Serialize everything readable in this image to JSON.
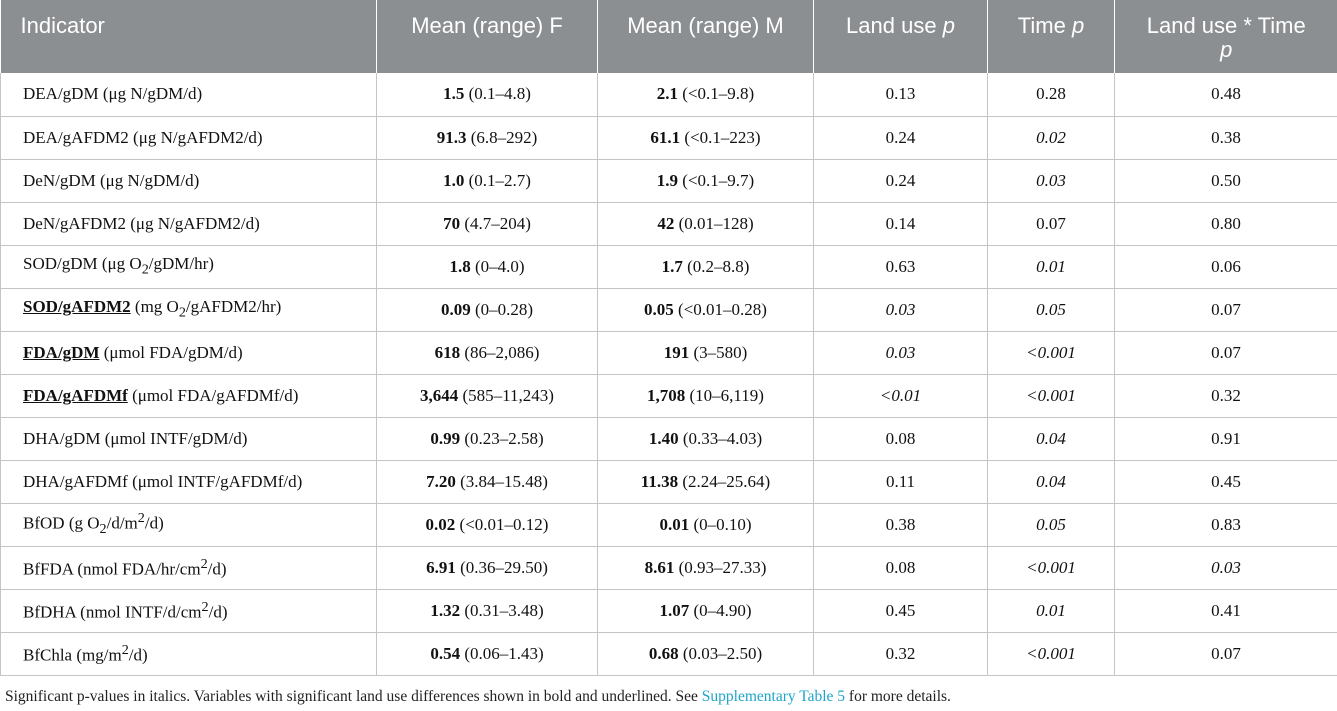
{
  "headers": {
    "indicator": "Indicator",
    "mean_f": "Mean (range) F",
    "mean_m": "Mean (range) M",
    "land_use_text": "Land use ",
    "time_text": "Time ",
    "interaction_text": "Land use * Time",
    "p": "p"
  },
  "rows": [
    {
      "name": "DEA/gDM",
      "name_bold": false,
      "unit_a": " (μg N/gDM/d)",
      "sup": "",
      "unit_b": "",
      "f_mean": "1.5",
      "f_range": " (0.1–4.8)",
      "m_mean": "2.1",
      "m_range": " (<0.1–9.8)",
      "lu": "0.13",
      "t": "0.28",
      "lt": "0.48"
    },
    {
      "name": "DEA/gAFDM2",
      "name_bold": false,
      "unit_a": " (μg N/gAFDM2/d)",
      "sup": "",
      "unit_b": "",
      "f_mean": "91.3",
      "f_range": " (6.8–292)",
      "m_mean": "61.1",
      "m_range": " (<0.1–223)",
      "lu": "0.24",
      "t": "0.02",
      "lt": "0.38"
    },
    {
      "name": "DeN/gDM",
      "name_bold": false,
      "unit_a": " (μg N/gDM/d)",
      "sup": "",
      "unit_b": "",
      "f_mean": "1.0",
      "f_range": " (0.1–2.7)",
      "m_mean": "1.9",
      "m_range": " (<0.1–9.7)",
      "lu": "0.24",
      "t": "0.03",
      "lt": "0.50"
    },
    {
      "name": "DeN/gAFDM2",
      "name_bold": false,
      "unit_a": " (μg N/gAFDM2/d)",
      "sup": "",
      "unit_b": "",
      "f_mean": "70",
      "f_range": " (4.7–204)",
      "m_mean": "42",
      "m_range": " (0.01–128)",
      "lu": "0.14",
      "t": "0.07",
      "lt": "0.80"
    },
    {
      "name": "SOD/gDM",
      "name_bold": false,
      "unit_a": " (μg O",
      "sub": "2",
      "unit_a2": "/gDM/hr)",
      "sup": "",
      "unit_b": "",
      "f_mean": "1.8",
      "f_range": " (0–4.0)",
      "m_mean": "1.7",
      "m_range": " (0.2–8.8)",
      "lu": "0.63",
      "t": "0.01",
      "lt": "0.06"
    },
    {
      "name": "SOD/gAFDM2",
      "name_bold": true,
      "unit_a": " (mg O",
      "sub": "2",
      "unit_a2": "/gAFDM2/hr)",
      "sup": "",
      "unit_b": "",
      "f_mean": "0.09",
      "f_range": " (0–0.28)",
      "m_mean": "0.05",
      "m_range": " (<0.01–0.28)",
      "lu": "0.03",
      "t": "0.05",
      "lt": "0.07"
    },
    {
      "name": "FDA/gDM",
      "name_bold": true,
      "unit_a": " (μmol FDA/gDM/d)",
      "sup": "",
      "unit_b": "",
      "f_mean": "618",
      "f_range": " (86–2,086)",
      "m_mean": "191",
      "m_range": " (3–580)",
      "lu": "0.03",
      "t": "<0.001",
      "lt": "0.07"
    },
    {
      "name": "FDA/gAFDMf",
      "name_bold": true,
      "unit_a": " (μmol FDA/gAFDMf/d)",
      "sup": "",
      "unit_b": "",
      "f_mean": "3,644",
      "f_range": " (585–11,243)",
      "m_mean": "1,708",
      "m_range": " (10–6,119)",
      "lu": "<0.01",
      "t": "<0.001",
      "lt": "0.32"
    },
    {
      "name": "DHA/gDM",
      "name_bold": false,
      "unit_a": " (μmol INTF/gDM/d)",
      "sup": "",
      "unit_b": "",
      "f_mean": "0.99",
      "f_range": " (0.23–2.58)",
      "m_mean": "1.40",
      "m_range": " (0.33–4.03)",
      "lu": "0.08",
      "t": "0.04",
      "lt": "0.91"
    },
    {
      "name": "DHA/gAFDMf",
      "name_bold": false,
      "unit_a": " (μmol INTF/gAFDMf/d)",
      "sup": "",
      "unit_b": "",
      "f_mean": "7.20",
      "f_range": " (3.84–15.48)",
      "m_mean": "11.38",
      "m_range": " (2.24–25.64)",
      "lu": "0.11",
      "t": "0.04",
      "lt": "0.45"
    },
    {
      "name": "BfOD",
      "name_bold": false,
      "unit_a": " (g O",
      "sub": "2",
      "unit_a2": "/d/m",
      "sup": "2",
      "unit_b": "/d)",
      "f_mean": "0.02",
      "f_range": " (<0.01–0.12)",
      "m_mean": "0.01",
      "m_range": " (0–0.10)",
      "lu": "0.38",
      "t": "0.05",
      "lt": "0.83"
    },
    {
      "name": "BfFDA",
      "name_bold": false,
      "unit_a": " (nmol FDA/hr/cm",
      "sup": "2",
      "unit_b": "/d)",
      "f_mean": "6.91",
      "f_range": " (0.36–29.50)",
      "m_mean": "8.61",
      "m_range": " (0.93–27.33)",
      "lu": "0.08",
      "t": "<0.001",
      "lt": "0.03"
    },
    {
      "name": "BfDHA",
      "name_bold": false,
      "unit_a": " (nmol INTF/d/cm",
      "sup": "2",
      "unit_b": "/d)",
      "f_mean": "1.32",
      "f_range": " (0.31–3.48)",
      "m_mean": "1.07",
      "m_range": " (0–4.90)",
      "lu": "0.45",
      "t": "0.01",
      "lt": "0.41"
    },
    {
      "name": "BfChla",
      "name_bold": false,
      "unit_a": " (mg/m",
      "sup": "2",
      "unit_b": "/d)",
      "f_mean": "0.54",
      "f_range": " (0.06–1.43)",
      "m_mean": "0.68",
      "m_range": " (0.03–2.50)",
      "lu": "0.32",
      "t": "<0.001",
      "lt": "0.07"
    }
  ],
  "italic_cells": [
    [
      1,
      "t"
    ],
    [
      2,
      "t"
    ],
    [
      4,
      "t"
    ],
    [
      5,
      "lu"
    ],
    [
      5,
      "t"
    ],
    [
      6,
      "lu"
    ],
    [
      6,
      "t"
    ],
    [
      7,
      "lu"
    ],
    [
      7,
      "t"
    ],
    [
      8,
      "t"
    ],
    [
      9,
      "t"
    ],
    [
      10,
      "t"
    ],
    [
      11,
      "t"
    ],
    [
      11,
      "lt"
    ],
    [
      12,
      "t"
    ],
    [
      13,
      "t"
    ]
  ],
  "note": {
    "text_before": "Significant p-values in italics. Variables with significant land use differences shown in bold and underlined. See ",
    "link": "Supplementary Table 5",
    "text_after": " for more details."
  },
  "colors": {
    "header_bg": "#8c8f92",
    "link": "#1fa5c9",
    "border": "#c4c4c4"
  }
}
